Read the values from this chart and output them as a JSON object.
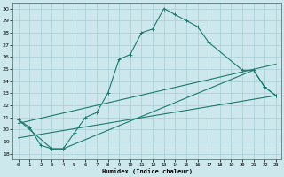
{
  "xlabel": "Humidex (Indice chaleur)",
  "bg_color": "#cce8ec",
  "grid_color": "#a8cdd4",
  "line_color": "#1a7a6e",
  "xlim": [
    -0.5,
    23.5
  ],
  "ylim": [
    17.5,
    30.5
  ],
  "xticks": [
    0,
    1,
    2,
    3,
    4,
    5,
    6,
    7,
    8,
    9,
    10,
    11,
    12,
    13,
    14,
    15,
    16,
    17,
    18,
    19,
    20,
    21,
    22,
    23
  ],
  "yticks": [
    18,
    19,
    20,
    21,
    22,
    23,
    24,
    25,
    26,
    27,
    28,
    29,
    30
  ],
  "line1_x": [
    0,
    1,
    2,
    3,
    4,
    5,
    6,
    7,
    8,
    9,
    10,
    11,
    12,
    13,
    14,
    15,
    16,
    17,
    20,
    21,
    22,
    23
  ],
  "line1_y": [
    20.8,
    20.2,
    18.7,
    18.4,
    18.4,
    19.7,
    21.0,
    21.4,
    23.0,
    25.8,
    26.2,
    28.0,
    28.3,
    30.0,
    29.5,
    29.0,
    28.5,
    27.2,
    24.9,
    24.9,
    23.5,
    22.8
  ],
  "line2_x": [
    0,
    3,
    4,
    21,
    22,
    23
  ],
  "line2_y": [
    20.8,
    18.4,
    18.4,
    24.9,
    23.5,
    22.8
  ],
  "line3_x": [
    0,
    23
  ],
  "line3_y": [
    19.3,
    22.8
  ],
  "line4_x": [
    0,
    23
  ],
  "line4_y": [
    20.5,
    25.4
  ]
}
